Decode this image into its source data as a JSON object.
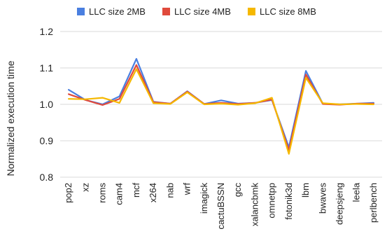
{
  "chart_data": {
    "type": "line",
    "title": "",
    "xlabel": "",
    "ylabel": "Normalized execution time",
    "ylim": [
      0.8,
      1.2
    ],
    "yticks": [
      "0.8",
      "0.9",
      "1.0",
      "1.1",
      "1.2"
    ],
    "grid": true,
    "legend_position": "top",
    "categories": [
      "pop2",
      "xz",
      "roms",
      "cam4",
      "mcf",
      "x264",
      "nab",
      "wrf",
      "imagick",
      "cactuBSSN",
      "gcc",
      "xalancbmk",
      "omnetpp",
      "fotonik3d",
      "lbm",
      "bwaves",
      "deepsjeng",
      "leela",
      "perlbench"
    ],
    "series": [
      {
        "name": "LLC size 2MB",
        "color": "#4a7fe0",
        "values": [
          1.04,
          1.012,
          1.0,
          1.022,
          1.125,
          1.007,
          1.002,
          1.036,
          1.001,
          1.011,
          1.002,
          1.004,
          1.012,
          0.882,
          1.092,
          1.002,
          1.0,
          1.002,
          1.004
        ]
      },
      {
        "name": "LLC size 4MB",
        "color": "#e04a3c",
        "values": [
          1.028,
          1.012,
          0.998,
          1.015,
          1.108,
          1.006,
          1.002,
          1.035,
          1.001,
          1.004,
          1.001,
          1.004,
          1.013,
          0.874,
          1.082,
          1.001,
          0.999,
          1.002,
          1.002
        ]
      },
      {
        "name": "LLC size 8MB",
        "color": "#f5b800",
        "values": [
          1.015,
          1.014,
          1.018,
          1.004,
          1.097,
          1.003,
          1.001,
          1.033,
          1.0,
          1.002,
          0.999,
          1.003,
          1.018,
          0.864,
          1.073,
          1.003,
          1.0,
          1.001,
          1.0
        ]
      }
    ]
  }
}
